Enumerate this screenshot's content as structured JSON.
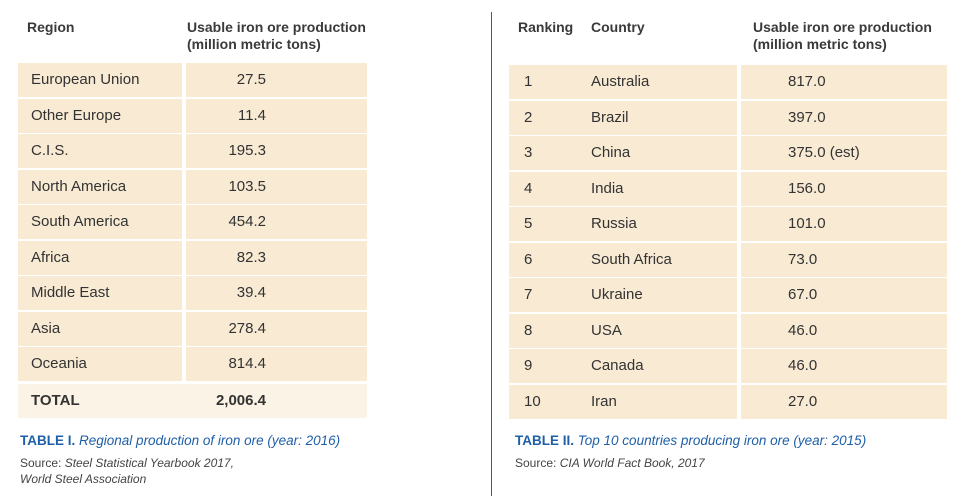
{
  "left_table": {
    "headers": [
      "Region",
      "Usable iron ore production (million metric tons)"
    ],
    "rows": [
      [
        "European Union",
        "27.5"
      ],
      [
        "Other Europe",
        "11.4"
      ],
      [
        "C.I.S.",
        "195.3"
      ],
      [
        "North America",
        "103.5"
      ],
      [
        "South America",
        "454.2"
      ],
      [
        "Africa",
        "82.3"
      ],
      [
        "Middle East",
        "39.4"
      ],
      [
        "Asia",
        "278.4"
      ],
      [
        "Oceania",
        "814.4"
      ]
    ],
    "total": [
      "TOTAL",
      "2,006.4"
    ],
    "caption": {
      "label": "TABLE I.",
      "text": "Regional production of iron ore (year: 2016)"
    },
    "source": {
      "prefix": "Source:",
      "text": "Steel Statistical Yearbook 2017, World Steel Association"
    }
  },
  "right_table": {
    "headers": [
      "Ranking",
      "Country",
      "Usable iron ore production (million metric tons)"
    ],
    "rows": [
      [
        "1",
        "Australia",
        "817.0"
      ],
      [
        "2",
        "Brazil",
        "397.0"
      ],
      [
        "3",
        "China",
        "375.0 (est)"
      ],
      [
        "4",
        "India",
        "156.0"
      ],
      [
        "5",
        "Russia",
        "101.0"
      ],
      [
        "6",
        "South Africa",
        "73.0"
      ],
      [
        "7",
        "Ukraine",
        "67.0"
      ],
      [
        "8",
        "USA",
        "46.0"
      ],
      [
        "9",
        "Canada",
        "46.0"
      ],
      [
        "10",
        "Iran",
        "27.0"
      ]
    ],
    "caption": {
      "label": "TABLE II.",
      "text": "Top 10 countries producing iron ore (year: 2015)"
    },
    "source": {
      "prefix": "Source:",
      "text": "CIA World Fact Book, 2017"
    }
  }
}
